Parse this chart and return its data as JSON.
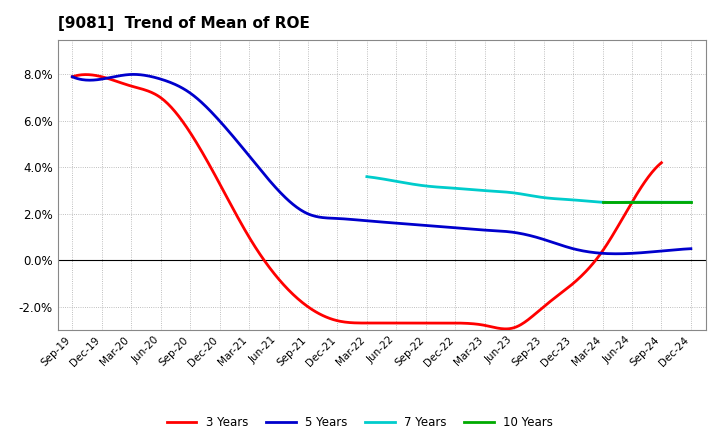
{
  "title": "[9081]  Trend of Mean of ROE",
  "title_fontsize": 11,
  "background_color": "#ffffff",
  "plot_bg_color": "#ffffff",
  "grid_color": "#aaaaaa",
  "x_labels": [
    "Sep-19",
    "Dec-19",
    "Mar-20",
    "Jun-20",
    "Sep-20",
    "Dec-20",
    "Mar-21",
    "Jun-21",
    "Sep-21",
    "Dec-21",
    "Mar-22",
    "Jun-22",
    "Sep-22",
    "Dec-22",
    "Mar-23",
    "Jun-23",
    "Sep-23",
    "Dec-23",
    "Mar-24",
    "Jun-24",
    "Sep-24",
    "Dec-24"
  ],
  "ylim": [
    -0.03,
    0.095
  ],
  "yticks": [
    -0.02,
    0.0,
    0.02,
    0.04,
    0.06,
    0.08
  ],
  "series": {
    "3 Years": {
      "color": "#ff0000",
      "data_indices": [
        0,
        1,
        2,
        3,
        4,
        5,
        6,
        7,
        8,
        9,
        10,
        11,
        12,
        13,
        14,
        15,
        16,
        17,
        18,
        19,
        20
      ],
      "values": [
        0.079,
        0.079,
        0.075,
        0.07,
        0.055,
        0.033,
        0.01,
        -0.008,
        -0.02,
        -0.026,
        -0.027,
        -0.027,
        -0.027,
        -0.027,
        -0.028,
        -0.029,
        -0.02,
        -0.01,
        0.004,
        0.025,
        0.042
      ]
    },
    "5 Years": {
      "color": "#0000cc",
      "data_indices": [
        0,
        1,
        2,
        3,
        4,
        5,
        6,
        7,
        8,
        9,
        10,
        11,
        12,
        13,
        14,
        15,
        16,
        17,
        18,
        19,
        20,
        21
      ],
      "values": [
        0.079,
        0.078,
        0.08,
        0.078,
        0.072,
        0.06,
        0.045,
        0.03,
        0.02,
        0.018,
        0.017,
        0.016,
        0.015,
        0.014,
        0.013,
        0.012,
        0.009,
        0.005,
        0.003,
        0.003,
        0.004,
        0.005
      ]
    },
    "7 Years": {
      "color": "#00cccc",
      "data_indices": [
        10,
        11,
        12,
        13,
        14,
        15,
        16,
        17,
        18,
        19,
        20,
        21
      ],
      "values": [
        0.036,
        0.034,
        0.032,
        0.031,
        0.03,
        0.029,
        0.027,
        0.026,
        0.025,
        0.025,
        0.025,
        0.025
      ]
    },
    "10 Years": {
      "color": "#00aa00",
      "data_indices": [
        18,
        19,
        20,
        21
      ],
      "values": [
        0.025,
        0.025,
        0.025,
        0.025
      ]
    }
  },
  "legend_order": [
    "3 Years",
    "5 Years",
    "7 Years",
    "10 Years"
  ]
}
